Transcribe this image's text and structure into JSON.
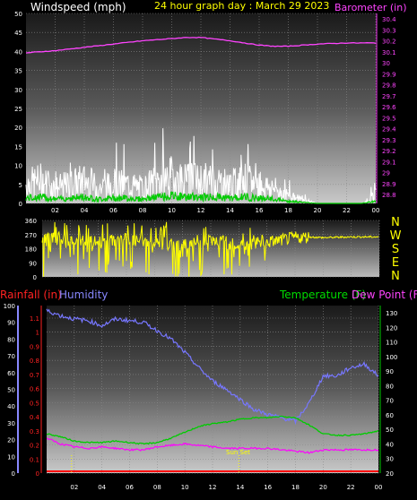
{
  "header": {
    "windspeed_title": "Windspeed (mph)",
    "graph_title": "24 hour graph day : March 29 2023",
    "barometer_title": "Barometer (in)"
  },
  "wind_panel": {
    "y_ticks": [
      "50",
      "45",
      "40",
      "35",
      "30",
      "25",
      "20",
      "15",
      "10",
      "5",
      "0"
    ],
    "baro_ticks": [
      "30.4",
      "30.3",
      "30.2",
      "30.1",
      "30",
      "29.9",
      "29.8",
      "29.7",
      "29.6",
      "29.5",
      "29.4",
      "29.3",
      "29.2",
      "29.1",
      "29",
      "28.9",
      "28.8"
    ],
    "x_ticks": [
      "02",
      "04",
      "06",
      "08",
      "10",
      "12",
      "14",
      "16",
      "18",
      "20",
      "22",
      "00"
    ]
  },
  "dir_panel": {
    "y_ticks": [
      "360",
      "270",
      "180",
      "90",
      "0"
    ],
    "compass": [
      "N",
      "W",
      "S",
      "E",
      "N"
    ]
  },
  "lower_panel": {
    "rainfall_title": "Rainfall (in)",
    "humidity_title": "Humidity",
    "temp_title": "Temperature (F)",
    "dewpoint_title": "Dew Point (F)",
    "humidity_ticks": [
      "100",
      "90",
      "80",
      "70",
      "60",
      "50",
      "40",
      "30",
      "20",
      "10",
      "0"
    ],
    "rain_ticks": [
      "1.1",
      "1",
      "0.9",
      "0.8",
      "0.7",
      "0.6",
      "0.5",
      "0.4",
      "0.3",
      "0.2",
      "0.1",
      "0"
    ],
    "temp_ticks": [
      "130",
      "120",
      "110",
      "100",
      "90",
      "80",
      "70",
      "60",
      "50",
      "40",
      "30",
      "20"
    ],
    "x_ticks": [
      "02",
      "04",
      "06",
      "08",
      "10",
      "12",
      "14",
      "16",
      "18",
      "20",
      "22",
      "00"
    ],
    "sunset_label": "Sun Set"
  },
  "colors": {
    "windspeed": "#ffffff",
    "gust": "#00cc00",
    "barometer": "#ff44ff",
    "direction": "#ffff00",
    "humidity": "#7777ff",
    "temperature": "#00cc00",
    "dewpoint": "#ff00ff",
    "rainfall": "#ff0000"
  },
  "chart_data": [
    {
      "type": "line",
      "x_unit": "hour",
      "xlim": [
        0,
        24
      ],
      "series": [
        {
          "name": "Windspeed (mph)",
          "axis": "left",
          "ylim": [
            0,
            50
          ],
          "x": [
            0,
            1,
            2,
            3,
            4,
            5,
            6,
            7,
            8,
            9,
            10,
            11,
            12,
            13,
            14,
            15,
            16,
            17,
            18,
            19,
            20,
            21,
            22,
            23,
            24
          ],
          "values": [
            5,
            6,
            4,
            5,
            6,
            4,
            5,
            5,
            4,
            6,
            7,
            6,
            6,
            6,
            5,
            6,
            5,
            4,
            2,
            1,
            0,
            0,
            0,
            0,
            2
          ]
        },
        {
          "name": "Barometer (in)",
          "axis": "right",
          "ylim": [
            28.8,
            30.4
          ],
          "x": [
            0,
            2,
            4,
            6,
            8,
            10,
            11,
            12,
            14,
            16,
            17,
            18,
            19,
            20,
            22,
            24
          ],
          "values": [
            30.09,
            30.11,
            30.14,
            30.17,
            30.2,
            30.22,
            30.23,
            30.23,
            30.2,
            30.16,
            30.15,
            30.15,
            30.16,
            30.17,
            30.18,
            30.18
          ]
        }
      ]
    },
    {
      "type": "line",
      "x_unit": "hour",
      "xlim": [
        0,
        24
      ],
      "series": [
        {
          "name": "Wind direction",
          "ylim": [
            0,
            360
          ],
          "x": [
            0,
            2,
            4,
            6,
            8,
            10,
            12,
            14,
            16,
            18,
            19,
            20,
            22,
            24
          ],
          "values": [
            250,
            230,
            220,
            240,
            210,
            200,
            230,
            200,
            220,
            250,
            255,
            250,
            255,
            255
          ]
        }
      ]
    },
    {
      "type": "line",
      "x_unit": "hour",
      "xlim": [
        0,
        24
      ],
      "series": [
        {
          "name": "Humidity",
          "axis": "left",
          "ylim": [
            0,
            100
          ],
          "x": [
            0,
            1,
            2,
            3,
            4,
            5,
            6,
            7,
            8,
            9,
            10,
            11,
            12,
            13,
            14,
            15,
            16,
            17,
            18,
            19,
            20,
            21,
            22,
            23,
            24
          ],
          "values": [
            97,
            94,
            92,
            91,
            88,
            92,
            91,
            90,
            85,
            80,
            72,
            63,
            55,
            50,
            44,
            38,
            35,
            33,
            31,
            42,
            58,
            58,
            63,
            65,
            58
          ]
        },
        {
          "name": "Temperature (F)",
          "axis": "right",
          "ylim": [
            20,
            135
          ],
          "x": [
            0,
            1,
            2,
            3,
            4,
            5,
            6,
            7,
            8,
            9,
            10,
            11,
            12,
            13,
            14,
            15,
            16,
            17,
            18,
            19,
            20,
            21,
            22,
            23,
            24
          ],
          "values": [
            47,
            45,
            42,
            41,
            41,
            42,
            41,
            40,
            41,
            44,
            48,
            52,
            54,
            55,
            57,
            58,
            58,
            59,
            58,
            53,
            47,
            46,
            46,
            47,
            49
          ]
        },
        {
          "name": "Dew Point (F)",
          "axis": "right",
          "ylim": [
            20,
            135
          ],
          "x": [
            0,
            1,
            2,
            3,
            4,
            5,
            6,
            7,
            8,
            9,
            10,
            11,
            12,
            13,
            14,
            15,
            16,
            17,
            18,
            19,
            20,
            21,
            22,
            23,
            24
          ],
          "values": [
            44,
            40,
            38,
            37,
            38,
            37,
            36,
            36,
            38,
            39,
            40,
            39,
            38,
            37,
            37,
            37,
            37,
            36,
            35,
            34,
            36,
            36,
            36,
            36,
            36
          ]
        },
        {
          "name": "Rainfall (in)",
          "axis": "left",
          "ylim": [
            0,
            1.1
          ],
          "x": [
            0,
            24
          ],
          "values": [
            0,
            0
          ]
        }
      ]
    }
  ]
}
